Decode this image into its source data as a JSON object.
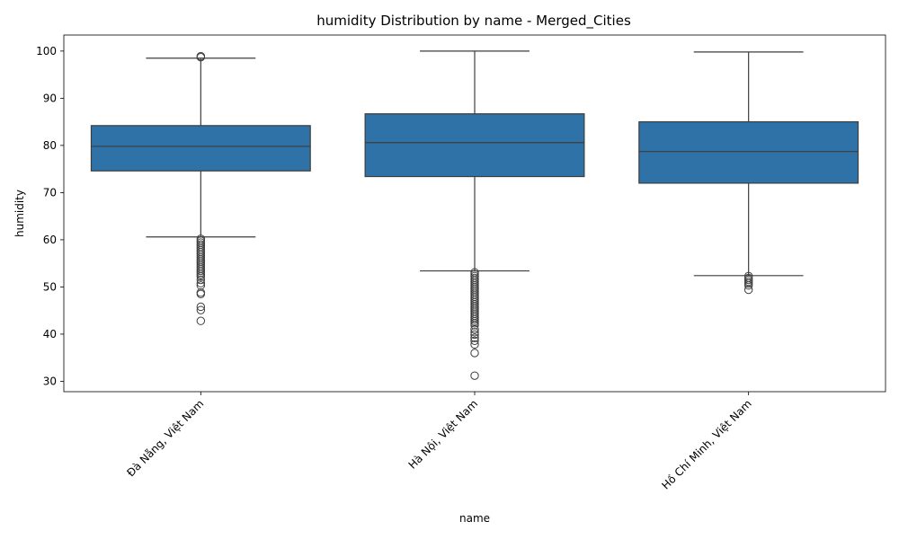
{
  "chart_data": {
    "type": "box",
    "title": "humidity Distribution by name - Merged_Cities",
    "xlabel": "name",
    "ylabel": "humidity",
    "ylim": [
      27.8,
      103.4
    ],
    "yticks": [
      30,
      40,
      50,
      60,
      70,
      80,
      90,
      100
    ],
    "box_color": "#2e72a8",
    "line_color": "#3d3d3d",
    "categories": [
      "Đà Nẵng, Việt Nam",
      "Hà Nội, Việt Nam",
      "Hồ Chí Minh, Việt Nam"
    ],
    "boxes": [
      {
        "category": "Đà Nẵng, Việt Nam",
        "q1": 74.6,
        "median": 79.8,
        "q3": 84.2,
        "whisker_low": 60.6,
        "whisker_high": 98.5,
        "outliers": [
          98.7,
          98.9,
          60.2,
          59.8,
          59.4,
          59.0,
          58.6,
          58.2,
          57.8,
          57.4,
          57.0,
          56.6,
          56.2,
          55.8,
          55.4,
          55.0,
          54.6,
          54.2,
          53.8,
          53.4,
          53.0,
          52.6,
          52.2,
          51.5,
          50.8,
          50.3,
          48.8,
          48.5,
          45.8,
          45.1,
          42.8
        ]
      },
      {
        "category": "Hà Nội, Việt Nam",
        "q1": 73.4,
        "median": 80.6,
        "q3": 86.7,
        "whisker_low": 53.4,
        "whisker_high": 100.0,
        "outliers": [
          53.1,
          52.7,
          52.3,
          51.9,
          51.5,
          51.1,
          50.7,
          50.3,
          49.9,
          49.5,
          49.1,
          48.7,
          48.3,
          47.9,
          47.5,
          47.1,
          46.7,
          46.3,
          45.9,
          45.5,
          45.1,
          44.7,
          44.3,
          43.9,
          43.5,
          43.1,
          42.7,
          42.3,
          41.9,
          41.0,
          40.4,
          39.9,
          39.2,
          38.6,
          37.8,
          36.0,
          31.2
        ]
      },
      {
        "category": "Hồ Chí Minh, Việt Nam",
        "q1": 72.0,
        "median": 78.7,
        "q3": 85.0,
        "whisker_low": 52.4,
        "whisker_high": 99.8,
        "outliers": [
          52.3,
          51.9,
          51.5,
          51.1,
          50.7,
          50.3,
          49.4
        ]
      }
    ]
  }
}
